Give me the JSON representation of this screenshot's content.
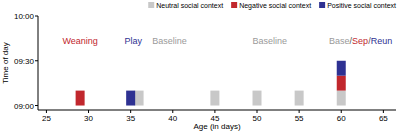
{
  "chart_data": {
    "type": "range_bar",
    "x_label": "Age (in days)",
    "y_label": "Time of day",
    "xlim": [
      24,
      66.5
    ],
    "xticks": [
      25,
      30,
      35,
      40,
      45,
      50,
      55,
      60,
      65
    ],
    "ylim": [
      537,
      600
    ],
    "yticks": [
      {
        "value": 540,
        "label": "09:00"
      },
      {
        "value": 570,
        "label": "09:30"
      },
      {
        "value": 600,
        "label": "10:00"
      }
    ],
    "legend": "top",
    "series": [
      {
        "name": "Neutral social context",
        "color": "#c8c8c8",
        "x": [
          36,
          45,
          50,
          55,
          60
        ],
        "start": [
          540,
          540,
          540,
          540,
          540
        ],
        "end": [
          550,
          550,
          550,
          550,
          550
        ]
      },
      {
        "name": "Negative social context",
        "color": "#c1272d",
        "x": [
          29,
          60
        ],
        "start": [
          540,
          550
        ],
        "end": [
          550,
          560
        ]
      },
      {
        "name": "Positive social context",
        "color": "#2e3192",
        "x": [
          35,
          60
        ],
        "start": [
          540,
          560
        ],
        "end": [
          550,
          570
        ]
      }
    ],
    "annotations": [
      {
        "parts": [
          {
            "text": "Weaning",
            "color": "#c1272d"
          }
        ],
        "x": 29,
        "y": 581
      },
      {
        "parts": [
          {
            "text": "Play",
            "color": "#2e3192"
          }
        ],
        "x": 35.3,
        "y": 581
      },
      {
        "parts": [
          {
            "text": "Baseline",
            "color": "#9a9a9a"
          }
        ],
        "x": 39.6,
        "y": 581
      },
      {
        "parts": [
          {
            "text": "Baseline",
            "color": "#9a9a9a"
          }
        ],
        "x": 51.5,
        "y": 581
      },
      {
        "parts": [
          {
            "text": "Base",
            "color": "#9a9a9a"
          },
          {
            "text": "/",
            "color": "#555555"
          },
          {
            "text": "Sep",
            "color": "#c1272d"
          },
          {
            "text": "/",
            "color": "#555555"
          },
          {
            "text": "Reun",
            "color": "#2e3192"
          }
        ],
        "x": 62.3,
        "y": 581
      }
    ]
  }
}
